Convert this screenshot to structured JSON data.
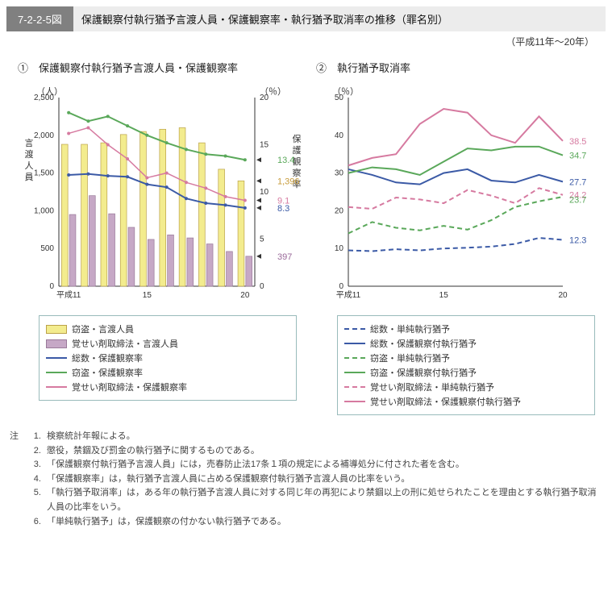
{
  "header": {
    "fig_no": "7-2-2-5図",
    "title": "保護観察付執行猶予言渡人員・保護観察率・執行猶予取消率の推移（罪名別）",
    "period": "（平成11年～20年）"
  },
  "chart1": {
    "subtitle": "①　保護観察付執行猶予言渡人員・保護観察率",
    "ylabel_left": "（人）",
    "ylabel_right": "（％）",
    "vlabel_left": "言渡人員",
    "vlabel_right": "保護観察率",
    "xticks": [
      "平成11",
      "15",
      "20"
    ],
    "xtick_pos": [
      0,
      4,
      9
    ],
    "yleft": {
      "min": 0,
      "max": 2500,
      "step": 500
    },
    "yright": {
      "min": 0,
      "max": 20,
      "step": 5
    },
    "bars": {
      "settou": {
        "label": "窃盗・言渡人員",
        "color": "#f3ec8e",
        "border": "#bba24a",
        "values": [
          1880,
          1880,
          1900,
          2010,
          2050,
          2080,
          2100,
          1900,
          1550,
          1396
        ]
      },
      "kakusei": {
        "label": "覚せい剤取締法・言渡人員",
        "color": "#c6a8c6",
        "border": "#9a7a9a",
        "values": [
          950,
          1200,
          960,
          780,
          620,
          680,
          640,
          560,
          460,
          397
        ]
      }
    },
    "lines": {
      "sousuu": {
        "label": "総数・保護観察率",
        "color": "#3b5aa6",
        "width": 2,
        "dash": "none",
        "values": [
          11.8,
          11.9,
          11.7,
          11.6,
          10.8,
          10.5,
          9.3,
          8.8,
          8.6,
          8.3
        ]
      },
      "settou_rate": {
        "label": "窃盗・保護観察率",
        "color": "#5aa85a",
        "width": 2,
        "dash": "none",
        "values": [
          18.4,
          17.5,
          18.0,
          17.0,
          16.0,
          15.2,
          14.5,
          14.0,
          13.8,
          13.4
        ]
      },
      "kakusei_rate": {
        "label": "覚せい剤取締法・保護観察率",
        "color": "#d67aa0",
        "width": 1.5,
        "dash": "none",
        "values": [
          16.2,
          16.8,
          15.0,
          13.5,
          11.5,
          12.0,
          11.0,
          10.4,
          9.5,
          9.1
        ]
      }
    },
    "end_labels": [
      {
        "text": "13.4",
        "color": "#5aa85a",
        "yval": 13.4,
        "type": "r"
      },
      {
        "text": "1,396",
        "color": "#c79b3a",
        "yval": 1396,
        "type": "l"
      },
      {
        "text": "9.1",
        "color": "#d67aa0",
        "yval": 9.1,
        "type": "r"
      },
      {
        "text": "8.3",
        "color": "#3b5aa6",
        "yval": 8.3,
        "type": "r"
      },
      {
        "text": "397",
        "color": "#9a6a9a",
        "yval": 397,
        "type": "l"
      }
    ]
  },
  "chart2": {
    "subtitle": "②　執行猶予取消率",
    "ylabel": "（％）",
    "y": {
      "min": 0,
      "max": 50,
      "step": 10
    },
    "xticks": [
      "平成11",
      "15",
      "20"
    ],
    "xtick_pos": [
      0,
      4,
      9
    ],
    "lines": {
      "a": {
        "label": "総数・単純執行猶予",
        "color": "#3b5aa6",
        "dash": "6,4",
        "width": 2,
        "values": [
          9.5,
          9.3,
          9.8,
          9.5,
          10.0,
          10.2,
          10.5,
          11.2,
          12.8,
          12.3
        ]
      },
      "b": {
        "label": "総数・保護観察付執行猶予",
        "color": "#3b5aa6",
        "dash": "none",
        "width": 2,
        "values": [
          31.0,
          29.5,
          27.5,
          27.0,
          30.0,
          31.0,
          28.0,
          27.5,
          29.5,
          27.7
        ]
      },
      "c": {
        "label": "窃盗・単純執行猶予",
        "color": "#5aa85a",
        "dash": "6,4",
        "width": 2,
        "values": [
          14.0,
          17.0,
          15.5,
          14.8,
          16.0,
          15.0,
          17.5,
          21.0,
          22.5,
          23.7
        ]
      },
      "d": {
        "label": "窃盗・保護観察付執行猶予",
        "color": "#5aa85a",
        "dash": "none",
        "width": 2,
        "values": [
          30.0,
          31.5,
          31.0,
          29.5,
          33.0,
          36.5,
          36.0,
          37.0,
          37.0,
          34.7
        ]
      },
      "e": {
        "label": "覚せい剤取締法・単純執行猶予",
        "color": "#d67aa0",
        "dash": "6,4",
        "width": 2,
        "values": [
          21.0,
          20.5,
          23.5,
          23.0,
          22.0,
          25.5,
          24.0,
          22.0,
          26.0,
          24.2
        ]
      },
      "f": {
        "label": "覚せい剤取締法・保護観察付執行猶予",
        "color": "#d67aa0",
        "dash": "none",
        "width": 2,
        "values": [
          32.0,
          34.0,
          35.0,
          43.0,
          47.0,
          46.0,
          40.0,
          38.0,
          45.0,
          38.5
        ]
      }
    },
    "end_labels": [
      {
        "text": "38.5",
        "color": "#d67aa0",
        "yval": 38.5
      },
      {
        "text": "34.7",
        "color": "#5aa85a",
        "yval": 34.7
      },
      {
        "text": "27.7",
        "color": "#3b5aa6",
        "yval": 27.7
      },
      {
        "text": "24.2",
        "color": "#d67aa0",
        "yval": 24.2
      },
      {
        "text": "23.7",
        "color": "#5aa85a",
        "yval": 23.0
      },
      {
        "text": "12.3",
        "color": "#3b5aa6",
        "yval": 12.3
      }
    ]
  },
  "legend2_order": [
    "a",
    "b",
    "c",
    "d",
    "e",
    "f"
  ],
  "legend1_order": [
    "settou",
    "kakusei",
    "sousuu",
    "settou_rate",
    "kakusei_rate"
  ],
  "notes": {
    "head": "注",
    "items": [
      "検察統計年報による。",
      "懲役，禁錮及び罰金の執行猶予に関するものである。",
      "「保護観察付執行猶予言渡人員」には，売春防止法17条１項の規定による補導処分に付された者を含む。",
      "「保護観察率」は，執行猶予言渡人員に占める保護観察付執行猶予言渡人員の比率をいう。",
      "「執行猶予取消率」は，ある年の執行猶予言渡人員に対する同じ年の再犯により禁錮以上の刑に処せられたことを理由とする執行猶予取消人員の比率をいう。",
      "「単純執行猶予」は，保護観察の付かない執行猶予である。"
    ]
  },
  "style": {
    "grid_color": "#bbbbbb",
    "axis_color": "#333333"
  }
}
